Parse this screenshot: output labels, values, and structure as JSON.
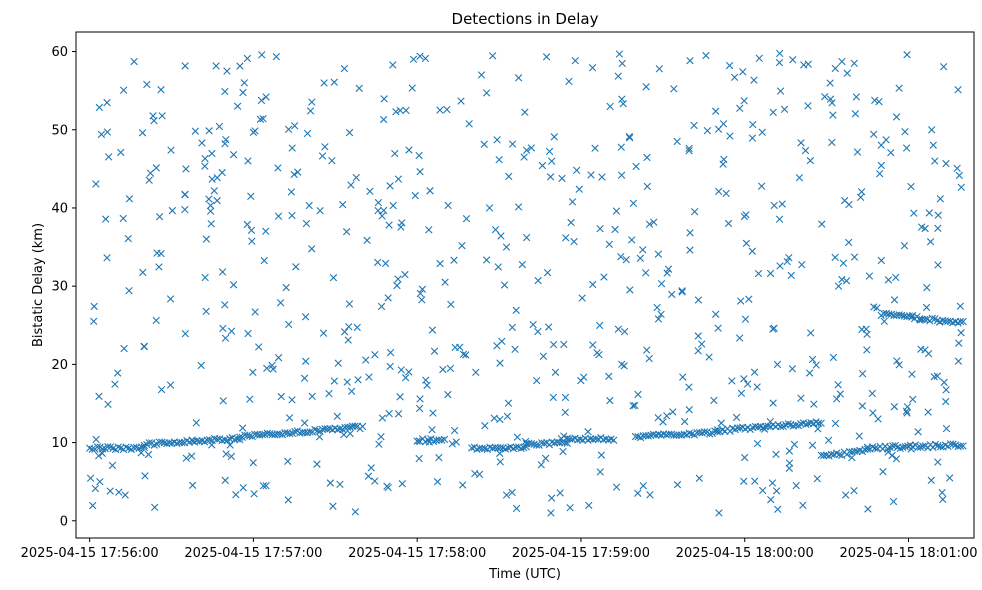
{
  "chart_data": {
    "type": "scatter",
    "title": "Detections in Delay",
    "xlabel": "Time (UTC)",
    "ylabel": "Bistatic Delay (km)",
    "x_ticks": [
      {
        "label": "2025-04-15 17:56:00",
        "t": 0
      },
      {
        "label": "2025-04-15 17:57:00",
        "t": 60
      },
      {
        "label": "2025-04-15 17:58:00",
        "t": 120
      },
      {
        "label": "2025-04-15 17:59:00",
        "t": 180
      },
      {
        "label": "2025-04-15 18:00:00",
        "t": 240
      },
      {
        "label": "2025-04-15 18:01:00",
        "t": 300
      }
    ],
    "xlim_label": [
      "2025-04-15 17:55:55",
      "2025-04-15 18:01:24"
    ],
    "xlim": [
      -5,
      324
    ],
    "ylim": [
      -2.2,
      62.5
    ],
    "y_ticks": [
      0,
      10,
      20,
      30,
      40,
      50,
      60
    ],
    "grid": false,
    "marker": "x",
    "color": "#1f77b4",
    "noise_detection_count": 700,
    "noise_delay_range": [
      1,
      60
    ],
    "tracks": [
      {
        "t_start": 0,
        "t_end": 20,
        "delay_start": 9.3,
        "delay_end": 9.3
      },
      {
        "t_start": 20,
        "t_end": 55,
        "delay_start": 9.8,
        "delay_end": 10.5
      },
      {
        "t_start": 55,
        "t_end": 100,
        "delay_start": 10.8,
        "delay_end": 12.0
      },
      {
        "t_start": 120,
        "t_end": 130,
        "delay_start": 10.3,
        "delay_end": 10.3
      },
      {
        "t_start": 140,
        "t_end": 160,
        "delay_start": 9.3,
        "delay_end": 9.3
      },
      {
        "t_start": 160,
        "t_end": 175,
        "delay_start": 9.7,
        "delay_end": 10.0
      },
      {
        "t_start": 175,
        "t_end": 192,
        "delay_start": 10.5,
        "delay_end": 10.5
      },
      {
        "t_start": 200,
        "t_end": 230,
        "delay_start": 10.8,
        "delay_end": 11.3
      },
      {
        "t_start": 230,
        "t_end": 268,
        "delay_start": 11.5,
        "delay_end": 12.6
      },
      {
        "t_start": 268,
        "t_end": 285,
        "delay_start": 8.2,
        "delay_end": 9.0
      },
      {
        "t_start": 285,
        "t_end": 320,
        "delay_start": 9.3,
        "delay_end": 9.7
      },
      {
        "t_start": 290,
        "t_end": 320,
        "delay_start": 26.4,
        "delay_end": 25.3
      }
    ]
  }
}
